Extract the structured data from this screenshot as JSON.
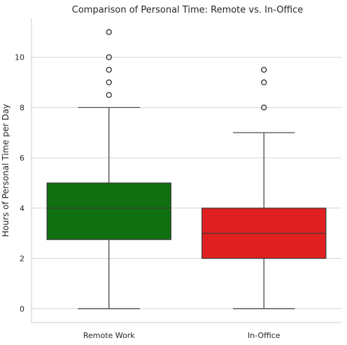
{
  "chart_data": {
    "type": "box",
    "title": "Comparison of Personal Time: Remote vs. In-Office",
    "xlabel": "",
    "ylabel": "Hours of Personal Time per Day",
    "ylim": [
      -0.55,
      11.55
    ],
    "yticks": [
      0,
      2,
      4,
      6,
      8,
      10
    ],
    "grid": true,
    "categories": [
      "Remote Work",
      "In-Office"
    ],
    "boxes": [
      {
        "category": "Remote Work",
        "color": "#107010",
        "whisker_low": 0,
        "q1": 2.75,
        "median": 4,
        "q3": 5,
        "whisker_high": 8,
        "outliers": [
          8.5,
          9,
          9.5,
          10,
          11
        ]
      },
      {
        "category": "In-Office",
        "color": "#e02020",
        "whisker_low": 0,
        "q1": 2,
        "median": 3,
        "q3": 4,
        "whisker_high": 7,
        "outliers": [
          8,
          9,
          9.5
        ]
      }
    ]
  }
}
